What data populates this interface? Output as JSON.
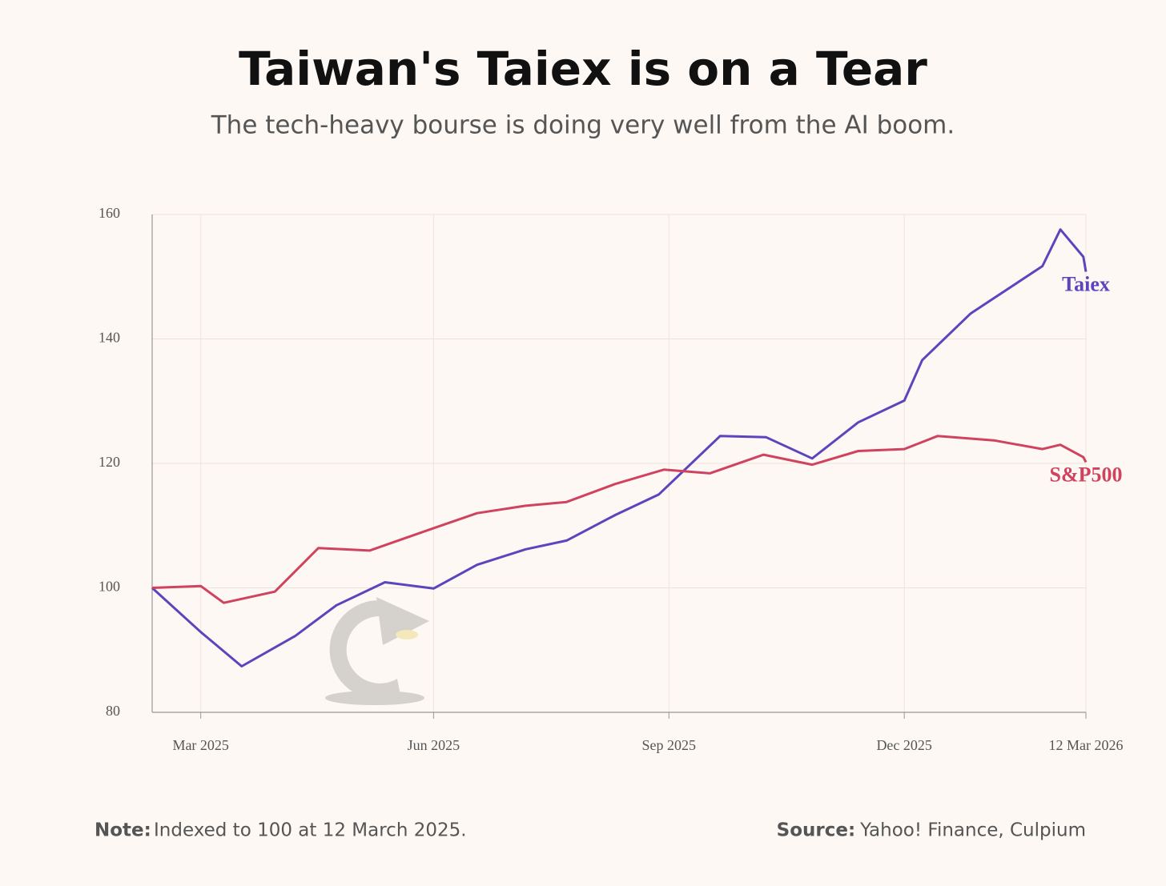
{
  "chart_data": {
    "type": "line",
    "title": "Taiwan's Taiex is on a Tear",
    "subtitle": "The tech-heavy bourse is doing very well from the AI boom.",
    "series": [
      {
        "name": "Taiex",
        "color": "#5b45bd",
        "x": [
          "2025-03-12",
          "2025-03-31",
          "2025-04-16",
          "2025-05-07",
          "2025-05-23",
          "2025-06-11",
          "2025-06-30",
          "2025-07-17",
          "2025-08-05",
          "2025-08-21",
          "2025-09-09",
          "2025-09-26",
          "2025-10-20",
          "2025-11-07",
          "2025-11-25",
          "2025-12-13",
          "2025-12-31",
          "2026-01-07",
          "2026-01-26",
          "2026-02-23",
          "2026-03-02",
          "2026-03-11",
          "2026-03-12"
        ],
        "values": [
          100,
          92.9,
          87.4,
          92.3,
          97.2,
          100.9,
          99.9,
          103.7,
          106.2,
          107.6,
          111.7,
          115.0,
          124.4,
          124.2,
          120.8,
          126.6,
          130.1,
          136.6,
          144.1,
          151.7,
          157.6,
          153.2,
          150.8
        ]
      },
      {
        "name": "S&P500",
        "color": "#d0435f",
        "x": [
          "2025-03-12",
          "2025-03-31",
          "2025-04-09",
          "2025-04-29",
          "2025-05-16",
          "2025-06-05",
          "2025-06-30",
          "2025-07-17",
          "2025-08-05",
          "2025-08-21",
          "2025-09-09",
          "2025-09-28",
          "2025-10-16",
          "2025-11-06",
          "2025-11-25",
          "2025-12-13",
          "2025-12-31",
          "2026-01-13",
          "2026-02-04",
          "2026-02-23",
          "2026-03-02",
          "2026-03-11",
          "2026-03-12"
        ],
        "values": [
          100,
          100.3,
          97.6,
          99.4,
          106.4,
          106.0,
          109.6,
          112.0,
          113.2,
          113.8,
          116.7,
          119.0,
          118.4,
          121.4,
          119.8,
          122.0,
          122.3,
          124.4,
          123.7,
          122.3,
          123.0,
          121.0,
          120.2
        ]
      }
    ],
    "xlim": [
      "2025-03-12",
      "2026-03-12"
    ],
    "xticks": [
      {
        "value": "2025-03-31",
        "label": "Mar 2025"
      },
      {
        "value": "2025-06-30",
        "label": "Jun 2025"
      },
      {
        "value": "2025-09-30",
        "label": "Sep 2025"
      },
      {
        "value": "2025-12-31",
        "label": "Dec 2025"
      },
      {
        "value": "2026-03-12",
        "label": "12 Mar 2026"
      }
    ],
    "ylim": [
      80,
      160
    ],
    "yticks": [
      80,
      100,
      120,
      140,
      160
    ],
    "grid": true,
    "note": {
      "label": "Note:",
      "text": "Indexed to 100 at 12 March 2025."
    },
    "source": {
      "label": "Source:",
      "text": "Yahoo! Finance, Culpium"
    }
  }
}
